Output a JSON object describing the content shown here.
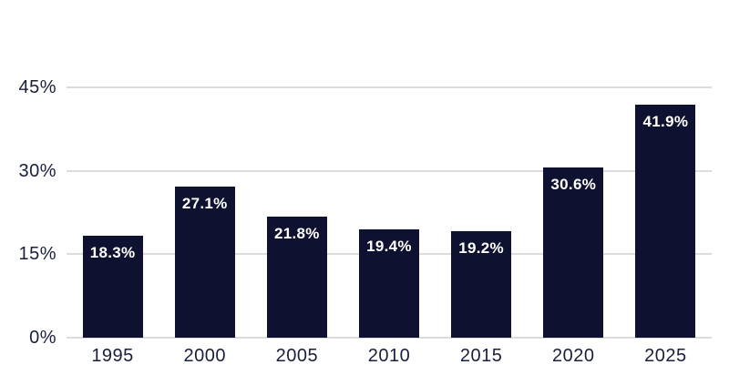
{
  "chart_data": {
    "type": "bar",
    "categories": [
      "1995",
      "2000",
      "2005",
      "2010",
      "2015",
      "2020",
      "2025"
    ],
    "values": [
      18.3,
      27.1,
      21.8,
      19.4,
      19.2,
      30.6,
      41.9
    ],
    "value_labels": [
      "18.3%",
      "27.1%",
      "21.8%",
      "19.4%",
      "19.2%",
      "30.6%",
      "41.9%"
    ],
    "y_ticks": [
      "45%",
      "30%",
      "15%",
      "0%"
    ],
    "y_tick_values": [
      45,
      30,
      15,
      0
    ],
    "ylim": [
      0,
      45
    ],
    "grid": true,
    "legend_position": "none",
    "colors": {
      "bar": "#0e1230",
      "bar_label": "#ffffff",
      "axis_text": "#1a1f3d",
      "gridline": "#dcdcdc",
      "background": "#ffffff"
    }
  }
}
